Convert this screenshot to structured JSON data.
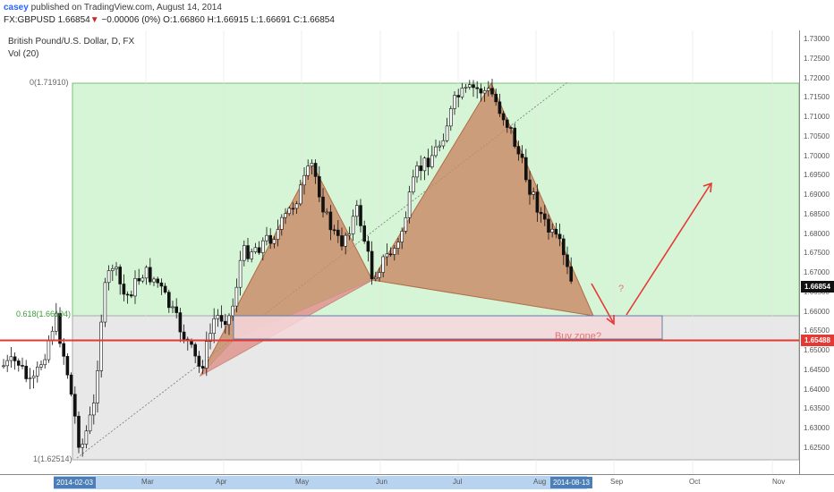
{
  "header": {
    "user": "casey",
    "published": " published on TradingView.com, August 14, 2014",
    "symbol": "FX:GBPUSD",
    "last": "1.66854",
    "change": "▼",
    "change_value": "−0.00006 (0%)",
    "ohlc": "O:1.66860 H:1.66915 L:1.66691 C:1.66854"
  },
  "legend": {
    "title": "British Pound/U.S. Dollar, D, FX",
    "volume": "Vol (20)"
  },
  "fib": {
    "level0": "0(1.71910)",
    "level618": "0.618(1.66104)",
    "level1": "1(1.62514)"
  },
  "annotations": {
    "buy_zone": "Buy zone?",
    "question": "?"
  },
  "price_axis": {
    "ticks": [
      "1.73000",
      "1.72500",
      "1.72000",
      "1.71500",
      "1.71000",
      "1.70500",
      "1.70000",
      "1.69500",
      "1.69000",
      "1.68500",
      "1.68000",
      "1.67500",
      "1.67000",
      "1.66500",
      "1.66000",
      "1.65500",
      "1.65000",
      "1.64500",
      "1.64000",
      "1.63500",
      "1.63000",
      "1.62500"
    ],
    "last_tag": "1.66854",
    "line_tag": "1.65488"
  },
  "time_axis": {
    "start_tag": "2014-02-03",
    "end_tag": "2014-08-13",
    "months": [
      "Mar",
      "Apr",
      "May",
      "Jun",
      "Jul",
      "Aug",
      "Sep",
      "Oct",
      "Nov"
    ]
  },
  "colors": {
    "fib_zone": "#d6f5d6",
    "lower_zone": "#e8e8e8",
    "pattern": "#c88a66",
    "buy_zone": "#f5d7da",
    "arrow": "#e53935",
    "support_line": "#e53935"
  },
  "chart_data": {
    "type": "candlestick",
    "y_range": [
      1.623,
      1.733
    ],
    "annotations": [
      "0(1.71910)",
      "0.618(1.66104)",
      "1(1.62514)",
      "Buy zone?",
      "?"
    ],
    "support_level": 1.65488,
    "fib_levels": [
      1.7191,
      1.66104,
      1.62514
    ]
  }
}
